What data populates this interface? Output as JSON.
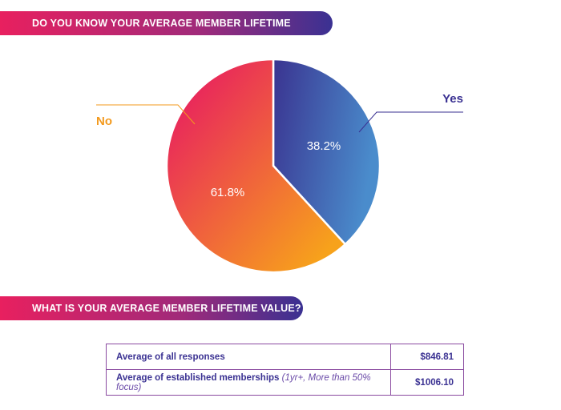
{
  "section1": {
    "title": "DO YOU KNOW YOUR AVERAGE MEMBER LIFETIME VALUE?"
  },
  "chart_data": {
    "type": "pie",
    "title": "DO YOU KNOW YOUR AVERAGE MEMBER LIFETIME VALUE?",
    "slices": [
      {
        "label": "Yes",
        "value": 38.2,
        "value_label": "38.2%",
        "colors": [
          "#3a3390",
          "#4a8ccc"
        ],
        "label_color": "#3a3192"
      },
      {
        "label": "No",
        "value": 61.8,
        "value_label": "61.8%",
        "colors": [
          "#e8205f",
          "#f7a21b"
        ],
        "label_color": "#f39a1e"
      }
    ]
  },
  "section2": {
    "title": "WHAT IS YOUR AVERAGE MEMBER LIFETIME VALUE?"
  },
  "table": {
    "rows": [
      {
        "label": "Average of all responses",
        "note": "",
        "value": "$846.81"
      },
      {
        "label": "Average of established memberships",
        "note": " (1yr+, More than 50% focus)",
        "value": "$1006.10"
      }
    ]
  }
}
